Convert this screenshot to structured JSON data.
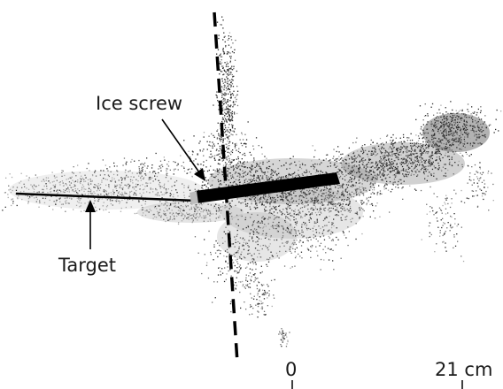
{
  "annotations": {
    "ice_screw": "Ice screw",
    "target": "Target"
  },
  "scale_bar": {
    "start_label": "0",
    "end_label": "21 cm"
  },
  "colors": {
    "background": "#ffffff",
    "points_dark": "#2b2b2b",
    "points_mid": "#6e6e6e",
    "points_light": "#a8a8a8",
    "screw_axis": "#000000",
    "target_line": "#000000"
  }
}
